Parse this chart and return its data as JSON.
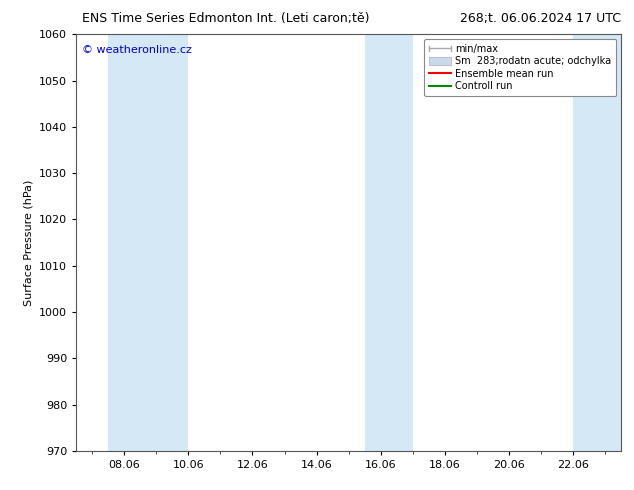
{
  "title_left": "ENS Time Series Edmonton Int. (Leti caron;tě)",
  "title_right": "268;t. 06.06.2024 17 UTC",
  "ylabel": "Surface Pressure (hPa)",
  "ylim": [
    970,
    1060
  ],
  "yticks": [
    970,
    980,
    990,
    1000,
    1010,
    1020,
    1030,
    1040,
    1050,
    1060
  ],
  "xtick_positions": [
    8,
    10,
    12,
    14,
    16,
    18,
    20,
    22
  ],
  "xtick_labels": [
    "08.06",
    "10.06",
    "12.06",
    "14.06",
    "16.06",
    "18.06",
    "20.06",
    "22.06"
  ],
  "x_min": 6.5,
  "x_max": 23.5,
  "watermark": "© weatheronline.cz",
  "watermark_color": "#0000cc",
  "bg_color": "#ffffff",
  "plot_bg_color": "#ffffff",
  "shaded_bands": [
    {
      "x_start": 7.5,
      "x_end": 10.0,
      "color": "#d4e8f5"
    },
    {
      "x_start": 15.5,
      "x_end": 17.0,
      "color": "#d4e8f5"
    },
    {
      "x_start": 22.0,
      "x_end": 23.5,
      "color": "#d4e8f5"
    }
  ],
  "legend_labels": [
    "min/max",
    "Sm  283;rodatn acute; odchylka",
    "Ensemble mean run",
    "Controll run"
  ],
  "legend_colors": [
    "#aaaaaa",
    "#ccd9ea",
    "#ff0000",
    "#00aa00"
  ],
  "grid_color": "#cccccc",
  "title_fontsize": 9,
  "axis_label_fontsize": 8,
  "tick_fontsize": 8,
  "watermark_fontsize": 8
}
